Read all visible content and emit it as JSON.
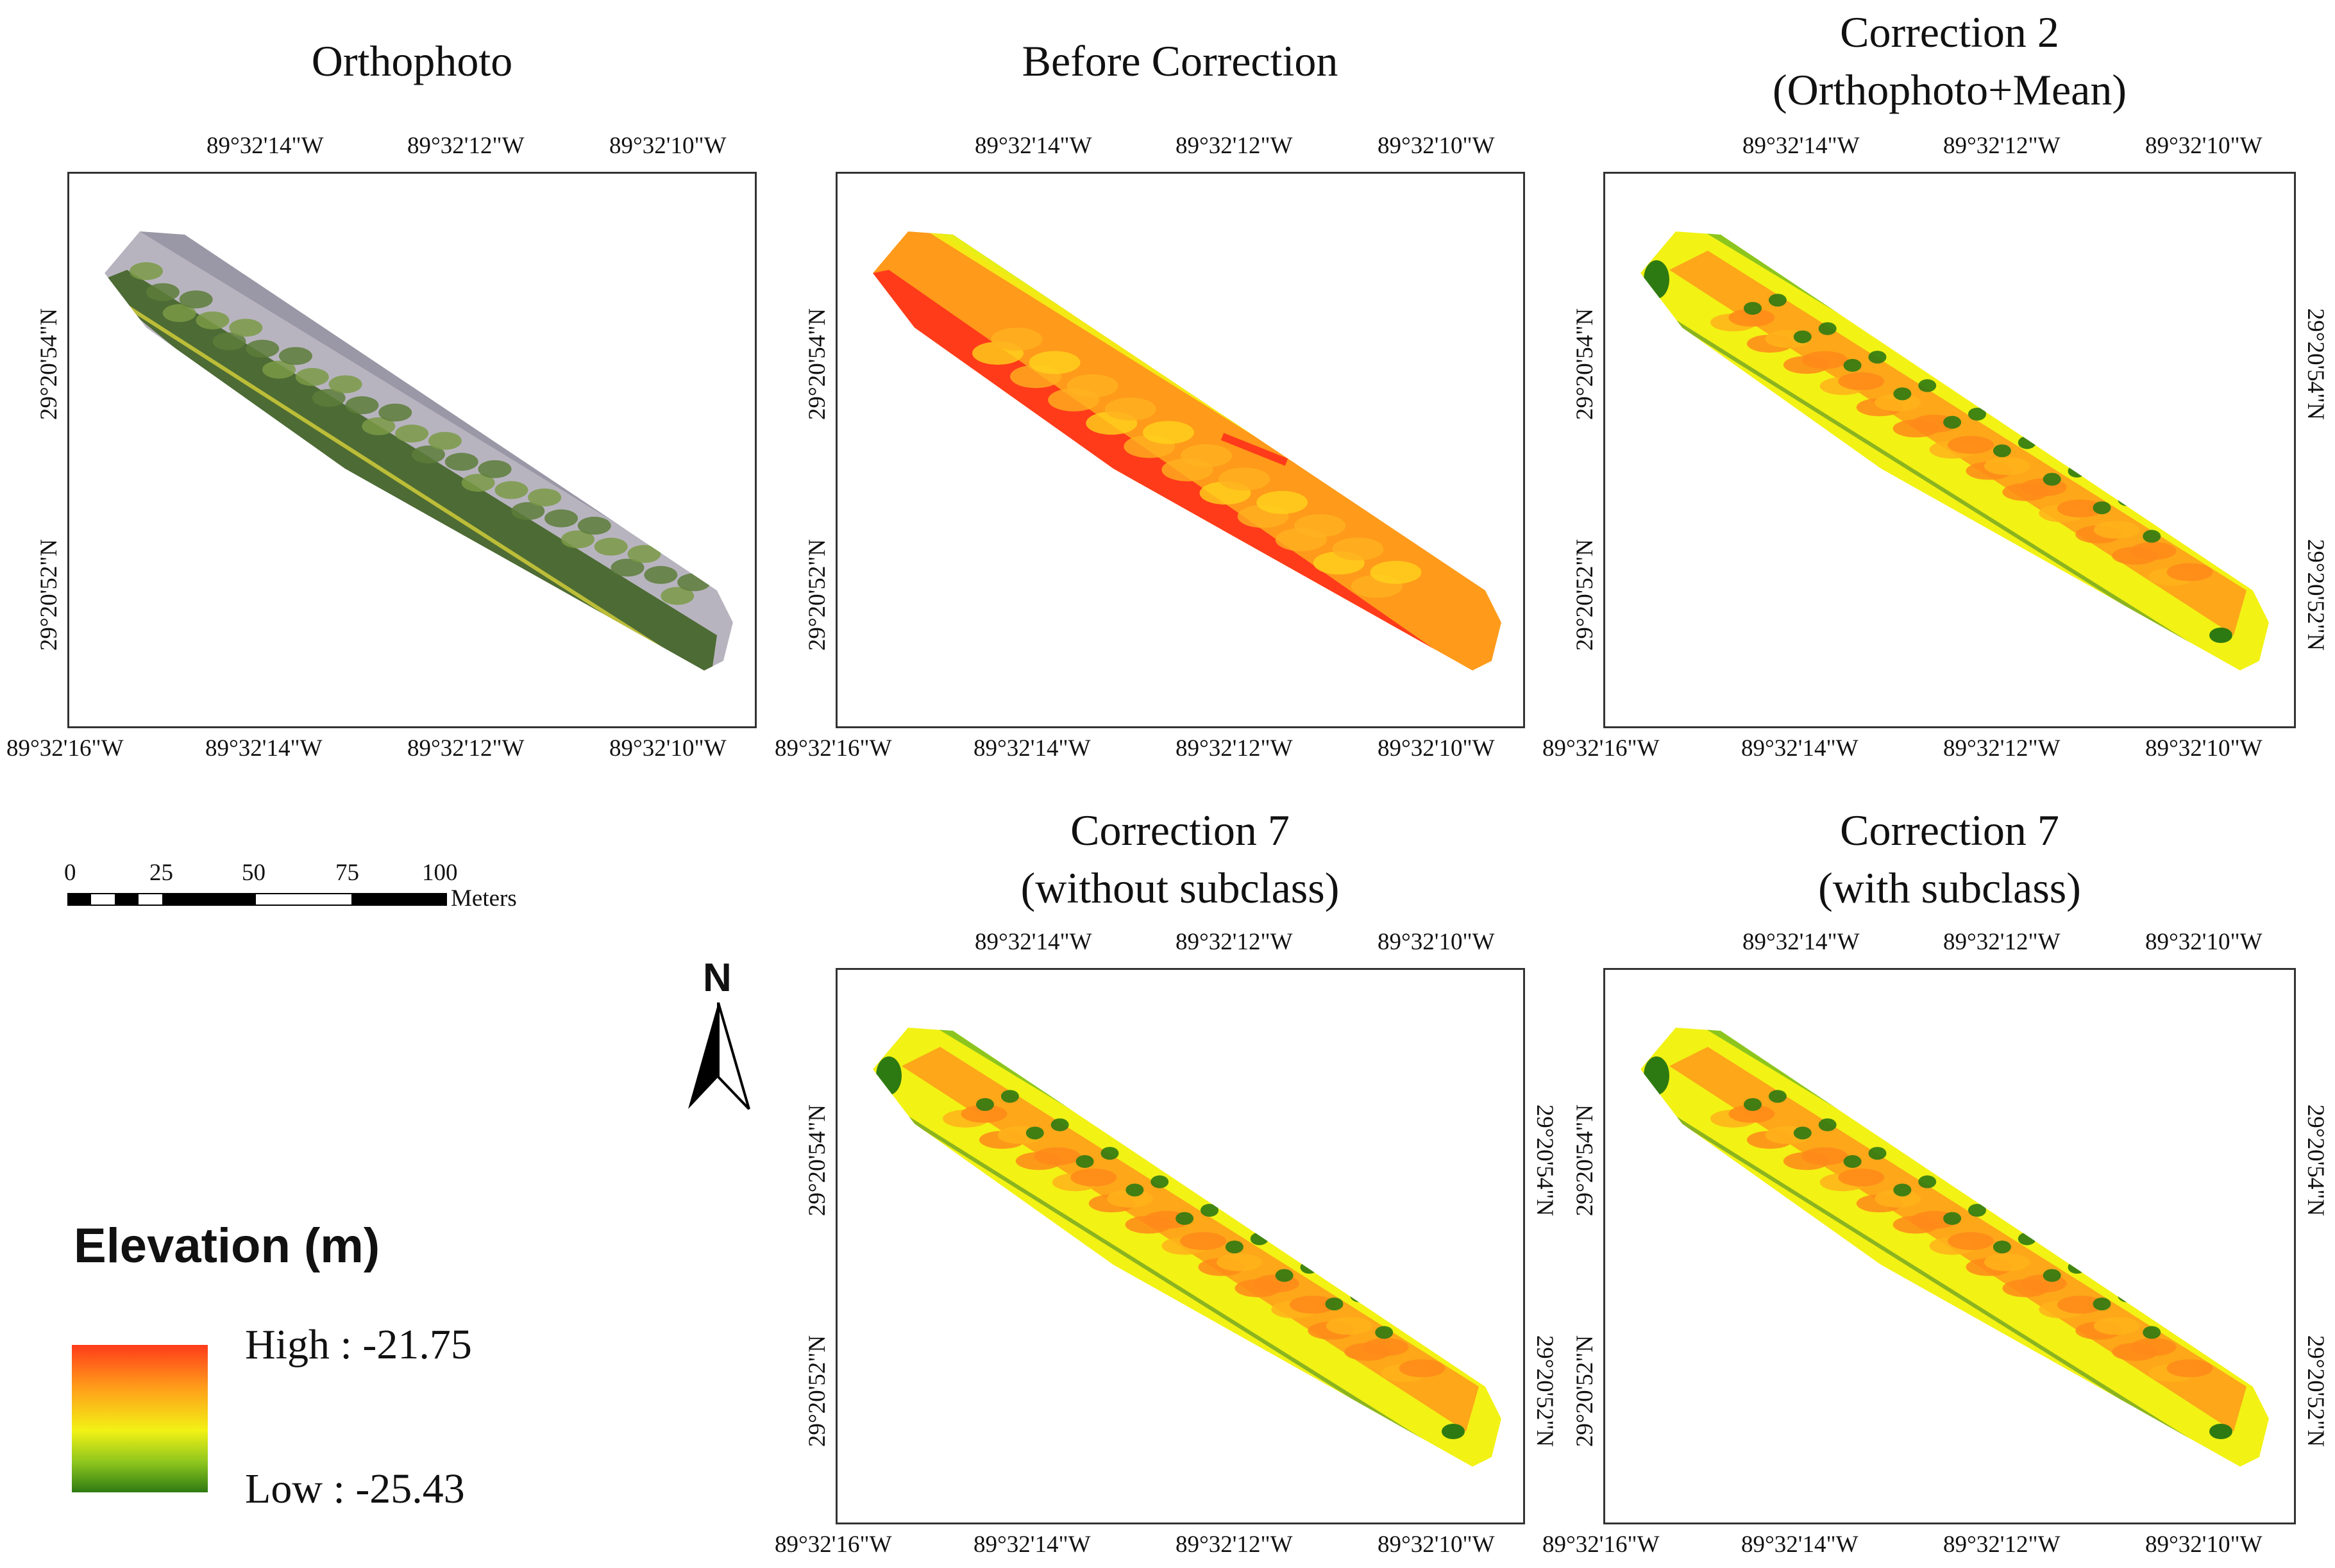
{
  "panels": [
    {
      "id": "ortho",
      "title1": "Orthophoto",
      "title2": "",
      "style": "ortho"
    },
    {
      "id": "before",
      "title1": "Before Correction",
      "title2": "",
      "style": "before"
    },
    {
      "id": "corr2",
      "title1": "Correction 2",
      "title2": "(Orthophoto+Mean)",
      "style": "corr"
    },
    {
      "id": "corr7a",
      "title1": "Correction 7",
      "title2": "(without subclass)",
      "style": "corr"
    },
    {
      "id": "corr7b",
      "title1": "Correction 7",
      "title2": "(with subclass)",
      "style": "corr"
    }
  ],
  "top_ticks": [
    "89°32'14\"W",
    "89°32'12\"W",
    "89°32'10\"W"
  ],
  "bottom_ticks": [
    "89°32'16\"W",
    "89°32'14\"W",
    "89°32'12\"W",
    "89°32'10\"W"
  ],
  "lat_ticks": [
    "29°20'54\"N",
    "29°20'52\"N"
  ],
  "scale_bar": {
    "labels": [
      "0",
      "25",
      "50",
      "75",
      "100"
    ],
    "unit": "Meters"
  },
  "north_arrow": {
    "label": "N"
  },
  "legend": {
    "title": "Elevation (m)",
    "high": "High : -21.75",
    "low": "Low : -25.43",
    "high_value": -21.75,
    "low_value": -25.43
  },
  "colors": {
    "high": "#ff3b1a",
    "orange": "#ff9a1a",
    "yellow": "#f2f215",
    "green": "#8cc51e",
    "dark_green": "#2e7a12"
  }
}
